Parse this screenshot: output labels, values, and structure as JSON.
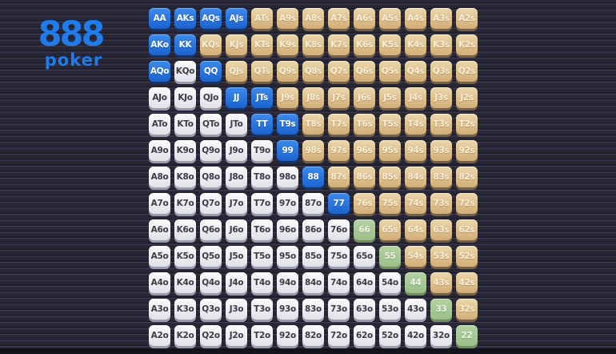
{
  "logo": {
    "number": "888",
    "word": "poker"
  },
  "palette": {
    "logo_blue": "#1e7cec",
    "blue_top": "#3d8aec",
    "blue_bottom": "#1b63d0",
    "blue_edge": "#14346c",
    "tan_top": "#ecd8ad",
    "tan_bottom": "#d2ad77",
    "tan_edge": "#79613f",
    "white_top": "#fbfbfd",
    "white_bottom": "#e1e1e8",
    "white_edge": "#9b9ca9",
    "green_top": "#b6d1a5",
    "green_bottom": "#9cbf8a",
    "green_edge": "#6f905c"
  },
  "chart_data": {
    "type": "heatmap",
    "description": "13x13 poker starting-hand matrix; pairs on the diagonal, suited hands above, offsuit hands below; each cell colored blue, tan, white or green",
    "legend_categories": [
      "blue",
      "tan",
      "white",
      "green"
    ],
    "rows": [
      [
        [
          "AA",
          "blue"
        ],
        [
          "AKs",
          "blue"
        ],
        [
          "AQs",
          "blue"
        ],
        [
          "AJs",
          "blue"
        ],
        [
          "ATs",
          "tan"
        ],
        [
          "A9s",
          "tan"
        ],
        [
          "A8s",
          "tan"
        ],
        [
          "A7s",
          "tan"
        ],
        [
          "A6s",
          "tan"
        ],
        [
          "A5s",
          "tan"
        ],
        [
          "A4s",
          "tan"
        ],
        [
          "A3s",
          "tan"
        ],
        [
          "A2s",
          "tan"
        ]
      ],
      [
        [
          "AKo",
          "blue"
        ],
        [
          "KK",
          "blue"
        ],
        [
          "KQs",
          "tan"
        ],
        [
          "KJs",
          "tan"
        ],
        [
          "KTs",
          "tan"
        ],
        [
          "K9s",
          "tan"
        ],
        [
          "K8s",
          "tan"
        ],
        [
          "K7s",
          "tan"
        ],
        [
          "K6s",
          "tan"
        ],
        [
          "K5s",
          "tan"
        ],
        [
          "K4s",
          "tan"
        ],
        [
          "K3s",
          "tan"
        ],
        [
          "K2s",
          "tan"
        ]
      ],
      [
        [
          "AQo",
          "blue"
        ],
        [
          "KQo",
          "white"
        ],
        [
          "QQ",
          "blue"
        ],
        [
          "QJs",
          "tan"
        ],
        [
          "QTs",
          "tan"
        ],
        [
          "Q9s",
          "tan"
        ],
        [
          "Q8s",
          "tan"
        ],
        [
          "Q7s",
          "tan"
        ],
        [
          "Q6s",
          "tan"
        ],
        [
          "Q5s",
          "tan"
        ],
        [
          "Q4s",
          "tan"
        ],
        [
          "Q3s",
          "tan"
        ],
        [
          "Q2s",
          "tan"
        ]
      ],
      [
        [
          "AJo",
          "white"
        ],
        [
          "KJo",
          "white"
        ],
        [
          "QJo",
          "white"
        ],
        [
          "JJ",
          "blue"
        ],
        [
          "JTs",
          "blue"
        ],
        [
          "J9s",
          "tan"
        ],
        [
          "J8s",
          "tan"
        ],
        [
          "J7s",
          "tan"
        ],
        [
          "J6s",
          "tan"
        ],
        [
          "J5s",
          "tan"
        ],
        [
          "J4s",
          "tan"
        ],
        [
          "J3s",
          "tan"
        ],
        [
          "J2s",
          "tan"
        ]
      ],
      [
        [
          "ATo",
          "white"
        ],
        [
          "KTo",
          "white"
        ],
        [
          "QTo",
          "white"
        ],
        [
          "JTo",
          "white"
        ],
        [
          "TT",
          "blue"
        ],
        [
          "T9s",
          "blue"
        ],
        [
          "T8s",
          "tan"
        ],
        [
          "T7s",
          "tan"
        ],
        [
          "T6s",
          "tan"
        ],
        [
          "T5s",
          "tan"
        ],
        [
          "T4s",
          "tan"
        ],
        [
          "T3s",
          "tan"
        ],
        [
          "T2s",
          "tan"
        ]
      ],
      [
        [
          "A9o",
          "white"
        ],
        [
          "K9o",
          "white"
        ],
        [
          "Q9o",
          "white"
        ],
        [
          "J9o",
          "white"
        ],
        [
          "T9o",
          "white"
        ],
        [
          "99",
          "blue"
        ],
        [
          "98s",
          "tan"
        ],
        [
          "97s",
          "tan"
        ],
        [
          "96s",
          "tan"
        ],
        [
          "95s",
          "tan"
        ],
        [
          "94s",
          "tan"
        ],
        [
          "93s",
          "tan"
        ],
        [
          "92s",
          "tan"
        ]
      ],
      [
        [
          "A8o",
          "white"
        ],
        [
          "K8o",
          "white"
        ],
        [
          "Q8o",
          "white"
        ],
        [
          "J8o",
          "white"
        ],
        [
          "T8o",
          "white"
        ],
        [
          "98o",
          "white"
        ],
        [
          "88",
          "blue"
        ],
        [
          "87s",
          "tan"
        ],
        [
          "86s",
          "tan"
        ],
        [
          "85s",
          "tan"
        ],
        [
          "84s",
          "tan"
        ],
        [
          "83s",
          "tan"
        ],
        [
          "82s",
          "tan"
        ]
      ],
      [
        [
          "A7o",
          "white"
        ],
        [
          "K7o",
          "white"
        ],
        [
          "Q7o",
          "white"
        ],
        [
          "J7o",
          "white"
        ],
        [
          "T7o",
          "white"
        ],
        [
          "97o",
          "white"
        ],
        [
          "87o",
          "white"
        ],
        [
          "77",
          "blue"
        ],
        [
          "76s",
          "tan"
        ],
        [
          "75s",
          "tan"
        ],
        [
          "74s",
          "tan"
        ],
        [
          "73s",
          "tan"
        ],
        [
          "72s",
          "tan"
        ]
      ],
      [
        [
          "A6o",
          "white"
        ],
        [
          "K6o",
          "white"
        ],
        [
          "Q6o",
          "white"
        ],
        [
          "J6o",
          "white"
        ],
        [
          "T6o",
          "white"
        ],
        [
          "96o",
          "white"
        ],
        [
          "86o",
          "white"
        ],
        [
          "76o",
          "white"
        ],
        [
          "66",
          "green"
        ],
        [
          "65s",
          "tan"
        ],
        [
          "64s",
          "tan"
        ],
        [
          "63s",
          "tan"
        ],
        [
          "62s",
          "tan"
        ]
      ],
      [
        [
          "A5o",
          "white"
        ],
        [
          "K5o",
          "white"
        ],
        [
          "Q5o",
          "white"
        ],
        [
          "J5o",
          "white"
        ],
        [
          "T5o",
          "white"
        ],
        [
          "95o",
          "white"
        ],
        [
          "85o",
          "white"
        ],
        [
          "75o",
          "white"
        ],
        [
          "65o",
          "white"
        ],
        [
          "55",
          "green"
        ],
        [
          "54s",
          "tan"
        ],
        [
          "53s",
          "tan"
        ],
        [
          "52s",
          "tan"
        ]
      ],
      [
        [
          "A4o",
          "white"
        ],
        [
          "K4o",
          "white"
        ],
        [
          "Q4o",
          "white"
        ],
        [
          "J4o",
          "white"
        ],
        [
          "T4o",
          "white"
        ],
        [
          "94o",
          "white"
        ],
        [
          "84o",
          "white"
        ],
        [
          "74o",
          "white"
        ],
        [
          "64o",
          "white"
        ],
        [
          "54o",
          "white"
        ],
        [
          "44",
          "green"
        ],
        [
          "43s",
          "tan"
        ],
        [
          "42s",
          "tan"
        ]
      ],
      [
        [
          "A3o",
          "white"
        ],
        [
          "K3o",
          "white"
        ],
        [
          "Q3o",
          "white"
        ],
        [
          "J3o",
          "white"
        ],
        [
          "T3o",
          "white"
        ],
        [
          "93o",
          "white"
        ],
        [
          "83o",
          "white"
        ],
        [
          "73o",
          "white"
        ],
        [
          "63o",
          "white"
        ],
        [
          "53o",
          "white"
        ],
        [
          "43o",
          "white"
        ],
        [
          "33",
          "green"
        ],
        [
          "32s",
          "tan"
        ]
      ],
      [
        [
          "A2o",
          "white"
        ],
        [
          "K2o",
          "white"
        ],
        [
          "Q2o",
          "white"
        ],
        [
          "J2o",
          "white"
        ],
        [
          "T2o",
          "white"
        ],
        [
          "92o",
          "white"
        ],
        [
          "82o",
          "white"
        ],
        [
          "72o",
          "white"
        ],
        [
          "62o",
          "white"
        ],
        [
          "52o",
          "white"
        ],
        [
          "42o",
          "white"
        ],
        [
          "32o",
          "white"
        ],
        [
          "22",
          "green"
        ]
      ]
    ]
  }
}
